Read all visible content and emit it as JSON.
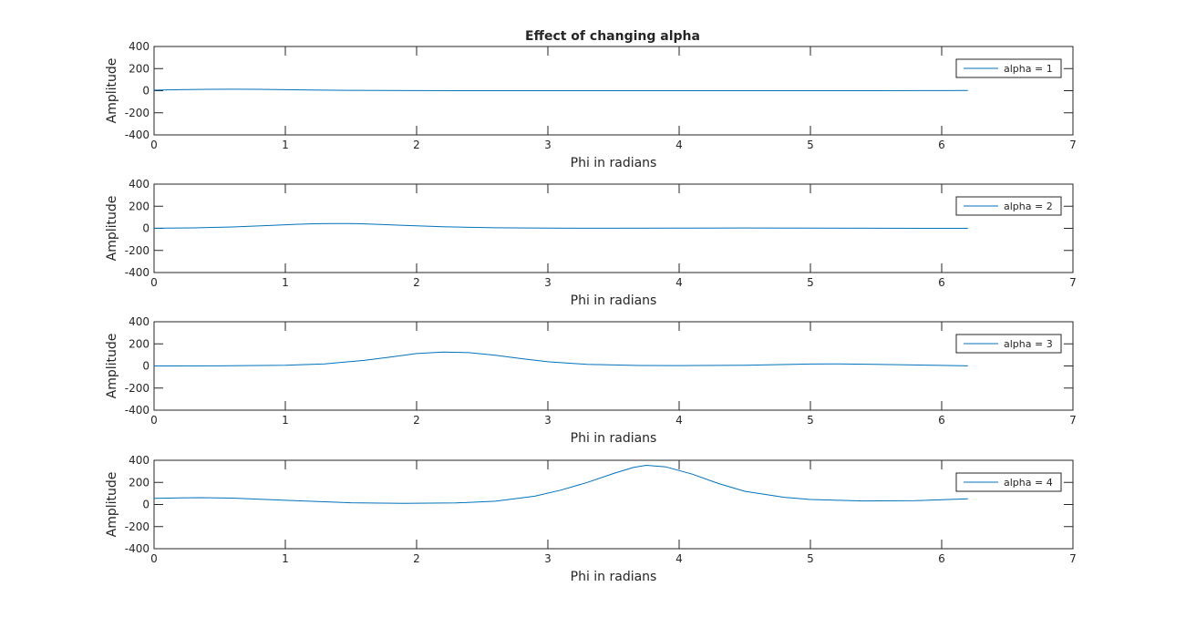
{
  "figure": {
    "title": "Effect of changing alpha"
  },
  "colors": {
    "line": "#0072BD",
    "axes": "#262626",
    "background": "#ffffff"
  },
  "chart_data": [
    {
      "type": "line",
      "title": "Effect of changing alpha",
      "xlabel": "Phi in radians",
      "ylabel": "Amplitude",
      "xlim": [
        0,
        7
      ],
      "ylim": [
        -400,
        400
      ],
      "xticks": [
        "0",
        "1",
        "2",
        "3",
        "4",
        "5",
        "6",
        "7"
      ],
      "yticks": [
        "400",
        "200",
        "0",
        "-200",
        "-400"
      ],
      "grid": false,
      "legend_position": "top-right",
      "series": [
        {
          "name": "alpha = 1",
          "x": [
            0,
            0.2,
            0.4,
            0.6,
            0.8,
            1.0,
            1.2,
            1.5,
            2.0,
            2.5,
            3.0,
            3.5,
            4.0,
            4.5,
            5.0,
            5.5,
            6.0,
            6.2
          ],
          "y": [
            5,
            9,
            12,
            13,
            12,
            9,
            6,
            3,
            1,
            0,
            0,
            0,
            0,
            0,
            0,
            0,
            1,
            2
          ]
        }
      ]
    },
    {
      "type": "line",
      "title": "",
      "xlabel": "Phi in radians",
      "ylabel": "Amplitude",
      "xlim": [
        0,
        7
      ],
      "ylim": [
        -400,
        400
      ],
      "xticks": [
        "0",
        "1",
        "2",
        "3",
        "4",
        "5",
        "6",
        "7"
      ],
      "yticks": [
        "400",
        "200",
        "0",
        "-200",
        "-400"
      ],
      "grid": false,
      "legend_position": "top-right",
      "series": [
        {
          "name": "alpha = 2",
          "x": [
            0,
            0.3,
            0.6,
            0.9,
            1.1,
            1.25,
            1.4,
            1.55,
            1.7,
            1.9,
            2.2,
            2.6,
            3.0,
            3.5,
            4.0,
            4.5,
            5.0,
            5.5,
            6.0,
            6.2
          ],
          "y": [
            1,
            4,
            12,
            27,
            37,
            42,
            44,
            42,
            36,
            26,
            14,
            5,
            2,
            1,
            2,
            3,
            2,
            1,
            0,
            0
          ]
        }
      ]
    },
    {
      "type": "line",
      "title": "",
      "xlabel": "Phi in radians",
      "ylabel": "Amplitude",
      "xlim": [
        0,
        7
      ],
      "ylim": [
        -400,
        400
      ],
      "xticks": [
        "0",
        "1",
        "2",
        "3",
        "4",
        "5",
        "6",
        "7"
      ],
      "yticks": [
        "400",
        "200",
        "0",
        "-200",
        "-400"
      ],
      "grid": false,
      "legend_position": "top-right",
      "series": [
        {
          "name": "alpha = 3",
          "x": [
            0,
            0.5,
            1.0,
            1.3,
            1.6,
            1.8,
            2.0,
            2.2,
            2.4,
            2.6,
            2.8,
            3.0,
            3.3,
            3.7,
            4.0,
            4.5,
            5.0,
            5.2,
            5.5,
            6.0,
            6.2
          ],
          "y": [
            0,
            1,
            6,
            19,
            50,
            80,
            112,
            125,
            120,
            97,
            66,
            38,
            14,
            4,
            3,
            6,
            17,
            19,
            14,
            5,
            1
          ]
        }
      ]
    },
    {
      "type": "line",
      "title": "",
      "xlabel": "Phi in radians",
      "ylabel": "Amplitude",
      "xlim": [
        0,
        7
      ],
      "ylim": [
        -400,
        400
      ],
      "xticks": [
        "0",
        "1",
        "2",
        "3",
        "4",
        "5",
        "6",
        "7"
      ],
      "yticks": [
        "400",
        "200",
        "0",
        "-200",
        "-400"
      ],
      "grid": false,
      "legend_position": "top-right",
      "series": [
        {
          "name": "alpha = 4",
          "x": [
            0,
            0.2,
            0.35,
            0.6,
            1.0,
            1.5,
            1.9,
            2.3,
            2.6,
            2.9,
            3.1,
            3.3,
            3.5,
            3.65,
            3.75,
            3.9,
            4.1,
            4.3,
            4.5,
            4.8,
            5.0,
            5.4,
            5.8,
            6.2
          ],
          "y": [
            55,
            60,
            62,
            58,
            38,
            16,
            10,
            14,
            30,
            75,
            130,
            200,
            280,
            335,
            355,
            340,
            275,
            190,
            120,
            65,
            45,
            32,
            35,
            52
          ]
        }
      ]
    }
  ]
}
